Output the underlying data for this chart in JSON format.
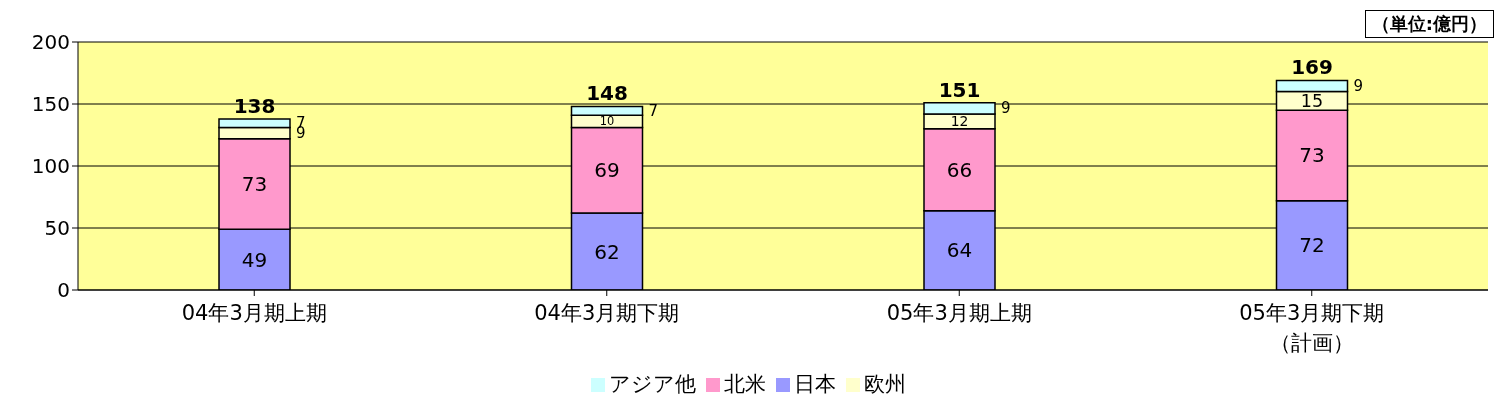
{
  "chart_data": {
    "type": "bar",
    "stacked": true,
    "categories": [
      "04年3月期上期",
      "04年3月期下期",
      "05年3月期上期",
      "05年3月期下期（計画）"
    ],
    "series": [
      {
        "name": "日本",
        "color": "#9999ff",
        "values": [
          49,
          62,
          64,
          72
        ]
      },
      {
        "name": "北米",
        "color": "#ff99cc",
        "values": [
          73,
          69,
          66,
          73
        ]
      },
      {
        "name": "欧州",
        "color": "#ffffcc",
        "values": [
          9,
          10,
          12,
          15
        ]
      },
      {
        "name": "アジア他",
        "color": "#ccffff",
        "values": [
          7,
          7,
          9,
          9
        ]
      }
    ],
    "totals": [
      "138",
      "148",
      "151",
      "169"
    ],
    "ylim": [
      0,
      200
    ],
    "yticks": [
      0,
      50,
      100,
      150,
      200
    ],
    "grid": "y",
    "legend": "bottom",
    "data_labels": true,
    "annotations": [
      "（単位:億円）"
    ]
  }
}
